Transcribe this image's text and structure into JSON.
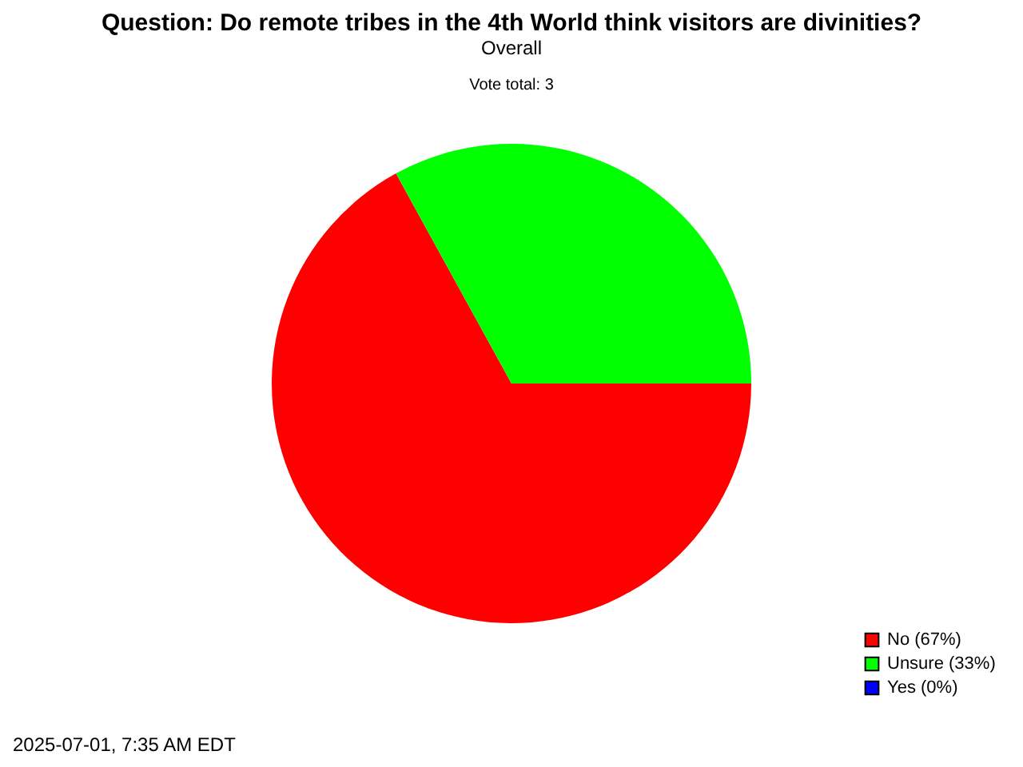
{
  "chart_data": {
    "type": "pie",
    "title": "Question: Do remote tribes in the 4th World think visitors are divinities?",
    "subtitle": "Overall",
    "annotations": [
      "Vote total: 3",
      "2025-07-01, 7:35 AM EDT"
    ],
    "categories": [
      "No (67%)",
      "Unsure (33%)",
      "Yes (0%)"
    ],
    "values": [
      67,
      33,
      0
    ],
    "colors": [
      "#ff0000",
      "#00ff00",
      "#0000ff"
    ],
    "legend": "bottom right"
  }
}
